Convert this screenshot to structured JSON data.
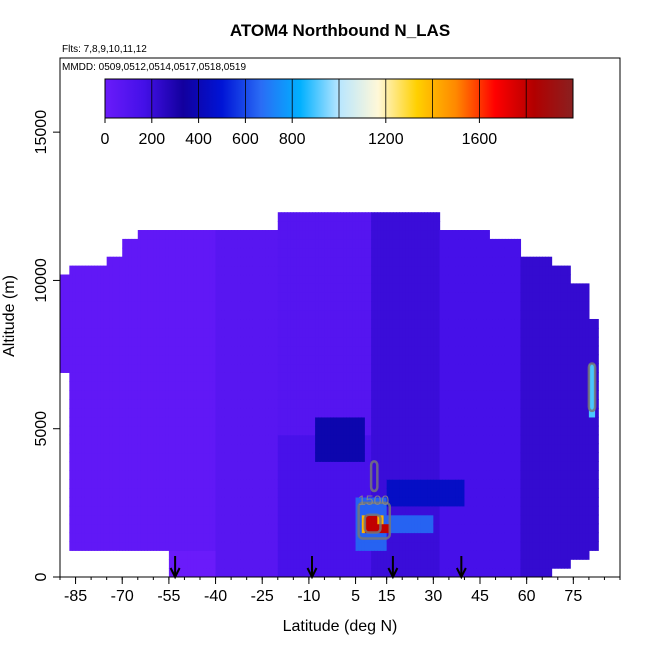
{
  "chart_data": {
    "type": "heatmap",
    "title": "ATOM4 Northbound N_LAS",
    "subtitle_flights": "Flts: 7,8,9,10,11,12",
    "subtitle_dates": "MMDD: 0509,0512,0514,0517,0518,0519",
    "xlabel": "Latitude (deg N)",
    "ylabel": "Altitude (m)",
    "xlim": [
      -90,
      90
    ],
    "ylim": [
      0,
      17500
    ],
    "x_ticks": [
      -85,
      -70,
      -55,
      -40,
      -25,
      -10,
      5,
      15,
      30,
      45,
      60,
      75
    ],
    "y_ticks": [
      0,
      5000,
      10000,
      15000
    ],
    "colorbar": {
      "range": [
        0,
        2000
      ],
      "tick_values": [
        0,
        200,
        400,
        600,
        800,
        1200,
        1600
      ],
      "colors": [
        "#6a1bfa",
        "#4410e8",
        "#12009e",
        "#0014d6",
        "#2a6cf5",
        "#00b0ff",
        "#b8e6ff",
        "#fff8d8",
        "#ffd000",
        "#ff8800",
        "#ff0000",
        "#b20000",
        "#8a2020"
      ]
    },
    "contour_label": "1500",
    "arrow_latitudes": [
      -53,
      -9,
      17,
      39
    ],
    "column_extents": [
      {
        "lat": [
          -90,
          -87
        ],
        "alt": [
          7000,
          10300
        ]
      },
      {
        "lat": [
          -87,
          -84
        ],
        "alt": [
          1000,
          10400
        ]
      },
      {
        "lat": [
          -84,
          -80
        ],
        "alt": [
          1000,
          10400
        ]
      },
      {
        "lat": [
          -80,
          -75
        ],
        "alt": [
          1000,
          10400
        ]
      },
      {
        "lat": [
          -75,
          -70
        ],
        "alt": [
          1000,
          10800
        ]
      },
      {
        "lat": [
          -70,
          -65
        ],
        "alt": [
          800,
          11400
        ]
      },
      {
        "lat": [
          -65,
          -55
        ],
        "alt": [
          800,
          11800
        ]
      },
      {
        "lat": [
          -55,
          -40
        ],
        "alt": [
          0,
          11800
        ]
      },
      {
        "lat": [
          -40,
          -20
        ],
        "alt": [
          0,
          11800
        ]
      },
      {
        "lat": [
          -20,
          10
        ],
        "alt": [
          0,
          12300
        ]
      },
      {
        "lat": [
          10,
          32
        ],
        "alt": [
          0,
          12300
        ]
      },
      {
        "lat": [
          32,
          48
        ],
        "alt": [
          0,
          11800
        ]
      },
      {
        "lat": [
          48,
          58
        ],
        "alt": [
          0,
          11400
        ]
      },
      {
        "lat": [
          58,
          68
        ],
        "alt": [
          0,
          10900
        ]
      },
      {
        "lat": [
          68,
          74
        ],
        "alt": [
          400,
          10600
        ]
      },
      {
        "lat": [
          74,
          80
        ],
        "alt": [
          500,
          9800
        ]
      },
      {
        "lat": [
          80,
          83
        ],
        "alt": [
          1000,
          8700
        ]
      }
    ],
    "value_regions": [
      {
        "lat": [
          -90,
          -40
        ],
        "alt": [
          800,
          11800
        ],
        "value": 40
      },
      {
        "lat": [
          -40,
          -20
        ],
        "alt": [
          0,
          11800
        ],
        "value": 80
      },
      {
        "lat": [
          -20,
          10
        ],
        "alt": [
          0,
          4800
        ],
        "value": 150
      },
      {
        "lat": [
          -20,
          10
        ],
        "alt": [
          4800,
          12300
        ],
        "value": 90
      },
      {
        "lat": [
          10,
          32
        ],
        "alt": [
          0,
          12300
        ],
        "value": 200
      },
      {
        "lat": [
          32,
          58
        ],
        "alt": [
          0,
          11800
        ],
        "value": 160
      },
      {
        "lat": [
          58,
          83
        ],
        "alt": [
          0,
          11400
        ],
        "value": 220
      },
      {
        "lat": [
          15,
          40
        ],
        "alt": [
          2400,
          3200
        ],
        "value": 450
      },
      {
        "lat": [
          -8,
          8
        ],
        "alt": [
          4000,
          5500
        ],
        "value": 380
      },
      {
        "lat": [
          5,
          15
        ],
        "alt": [
          1000,
          2600
        ],
        "value": 650
      },
      {
        "lat": [
          7,
          14
        ],
        "alt": [
          1400,
          2200
        ],
        "value": 1400
      },
      {
        "lat": [
          8,
          12
        ],
        "alt": [
          1500,
          2000
        ],
        "value": 1800
      },
      {
        "lat": [
          15,
          30
        ],
        "alt": [
          1500,
          2000
        ],
        "value": 650
      },
      {
        "lat": [
          12,
          16
        ],
        "alt": [
          1600,
          1900
        ],
        "value": 1800
      },
      {
        "lat": [
          80,
          82
        ],
        "alt": [
          5500,
          7300
        ],
        "value": 900
      }
    ]
  }
}
